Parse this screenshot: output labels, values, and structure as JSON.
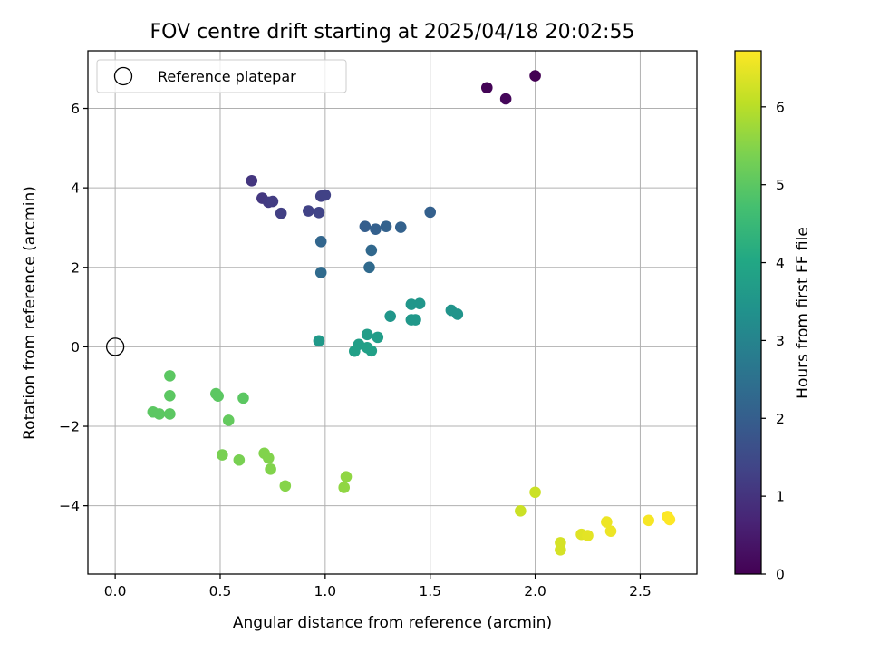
{
  "chart_data": {
    "type": "scatter",
    "title": "FOV centre drift starting at 2025/04/18 20:02:55",
    "xlabel": "Angular distance from reference (arcmin)",
    "ylabel": "Rotation from reference (arcmin)",
    "xlim": [
      -0.13,
      2.77
    ],
    "ylim": [
      -5.72,
      7.45
    ],
    "xticks": [
      "0.0",
      "0.5",
      "1.0",
      "1.5",
      "2.0",
      "2.5"
    ],
    "xtick_values": [
      0,
      0.5,
      1.0,
      1.5,
      2.0,
      2.5
    ],
    "yticks": [
      "−4",
      "−2",
      "0",
      "2",
      "4",
      "6"
    ],
    "ytick_values": [
      -4,
      -2,
      0,
      2,
      4,
      6
    ],
    "grid": true,
    "legend": {
      "placement": "upper-left",
      "label": "Reference platepar"
    },
    "reference_point": {
      "x": 0,
      "y": 0
    },
    "colorbar": {
      "label": "Hours from first FF file",
      "colormap": "viridis",
      "range": [
        0,
        6.72
      ],
      "ticks": [
        "0",
        "1",
        "2",
        "3",
        "4",
        "5",
        "6"
      ],
      "tick_values": [
        0,
        1,
        2,
        3,
        4,
        5,
        6
      ]
    },
    "series": [
      {
        "points": [
          {
            "x": 1.77,
            "y": 6.52,
            "c": 0.05
          },
          {
            "x": 1.86,
            "y": 6.24,
            "c": 0.12
          },
          {
            "x": 2.0,
            "y": 6.82,
            "c": 0.0
          },
          {
            "x": 0.65,
            "y": 4.18,
            "c": 1.05
          },
          {
            "x": 0.7,
            "y": 3.74,
            "c": 1.1
          },
          {
            "x": 0.73,
            "y": 3.64,
            "c": 1.15
          },
          {
            "x": 0.75,
            "y": 3.66,
            "c": 1.2
          },
          {
            "x": 0.79,
            "y": 3.36,
            "c": 1.25
          },
          {
            "x": 0.92,
            "y": 3.42,
            "c": 1.3
          },
          {
            "x": 0.97,
            "y": 3.38,
            "c": 1.35
          },
          {
            "x": 0.98,
            "y": 3.79,
            "c": 1.28
          },
          {
            "x": 1.0,
            "y": 3.82,
            "c": 1.3
          },
          {
            "x": 1.19,
            "y": 3.03,
            "c": 2.0
          },
          {
            "x": 1.24,
            "y": 2.96,
            "c": 2.05
          },
          {
            "x": 1.29,
            "y": 3.03,
            "c": 2.1
          },
          {
            "x": 1.36,
            "y": 3.01,
            "c": 2.1
          },
          {
            "x": 1.5,
            "y": 3.39,
            "c": 2.05
          },
          {
            "x": 0.98,
            "y": 2.65,
            "c": 2.2
          },
          {
            "x": 1.22,
            "y": 2.43,
            "c": 2.25
          },
          {
            "x": 1.21,
            "y": 2.0,
            "c": 2.3
          },
          {
            "x": 0.98,
            "y": 1.87,
            "c": 2.35
          },
          {
            "x": 1.41,
            "y": 1.07,
            "c": 3.5
          },
          {
            "x": 1.45,
            "y": 1.09,
            "c": 3.5
          },
          {
            "x": 1.41,
            "y": 0.68,
            "c": 3.55
          },
          {
            "x": 1.43,
            "y": 0.68,
            "c": 3.55
          },
          {
            "x": 1.6,
            "y": 0.92,
            "c": 3.45
          },
          {
            "x": 1.63,
            "y": 0.82,
            "c": 3.45
          },
          {
            "x": 1.31,
            "y": 0.77,
            "c": 3.5
          },
          {
            "x": 1.2,
            "y": 0.31,
            "c": 3.7
          },
          {
            "x": 1.25,
            "y": 0.24,
            "c": 3.7
          },
          {
            "x": 1.16,
            "y": 0.06,
            "c": 3.75
          },
          {
            "x": 1.2,
            "y": -0.02,
            "c": 3.8
          },
          {
            "x": 1.14,
            "y": -0.11,
            "c": 3.8
          },
          {
            "x": 1.22,
            "y": -0.1,
            "c": 3.8
          },
          {
            "x": 0.97,
            "y": 0.15,
            "c": 3.6
          },
          {
            "x": 0.26,
            "y": -0.73,
            "c": 5.0
          },
          {
            "x": 0.26,
            "y": -1.23,
            "c": 5.0
          },
          {
            "x": 0.48,
            "y": -1.18,
            "c": 5.0
          },
          {
            "x": 0.49,
            "y": -1.24,
            "c": 5.0
          },
          {
            "x": 0.61,
            "y": -1.29,
            "c": 5.0
          },
          {
            "x": 0.18,
            "y": -1.64,
            "c": 5.0
          },
          {
            "x": 0.21,
            "y": -1.69,
            "c": 5.0
          },
          {
            "x": 0.26,
            "y": -1.69,
            "c": 5.0
          },
          {
            "x": 0.54,
            "y": -1.85,
            "c": 5.1
          },
          {
            "x": 0.51,
            "y": -2.72,
            "c": 5.35
          },
          {
            "x": 0.59,
            "y": -2.85,
            "c": 5.35
          },
          {
            "x": 0.71,
            "y": -2.68,
            "c": 5.45
          },
          {
            "x": 0.73,
            "y": -2.8,
            "c": 5.45
          },
          {
            "x": 0.74,
            "y": -3.08,
            "c": 5.45
          },
          {
            "x": 0.81,
            "y": -3.5,
            "c": 5.5
          },
          {
            "x": 1.1,
            "y": -3.27,
            "c": 5.6
          },
          {
            "x": 1.09,
            "y": -3.54,
            "c": 5.6
          },
          {
            "x": 1.93,
            "y": -4.13,
            "c": 6.2
          },
          {
            "x": 2.0,
            "y": -3.66,
            "c": 6.2
          },
          {
            "x": 2.12,
            "y": -4.93,
            "c": 6.3
          },
          {
            "x": 2.12,
            "y": -5.11,
            "c": 6.3
          },
          {
            "x": 2.22,
            "y": -4.72,
            "c": 6.4
          },
          {
            "x": 2.25,
            "y": -4.75,
            "c": 6.45
          },
          {
            "x": 2.34,
            "y": -4.41,
            "c": 6.55
          },
          {
            "x": 2.36,
            "y": -4.64,
            "c": 6.55
          },
          {
            "x": 2.54,
            "y": -4.37,
            "c": 6.65
          },
          {
            "x": 2.63,
            "y": -4.27,
            "c": 6.7
          },
          {
            "x": 2.64,
            "y": -4.35,
            "c": 6.72
          }
        ]
      }
    ]
  }
}
